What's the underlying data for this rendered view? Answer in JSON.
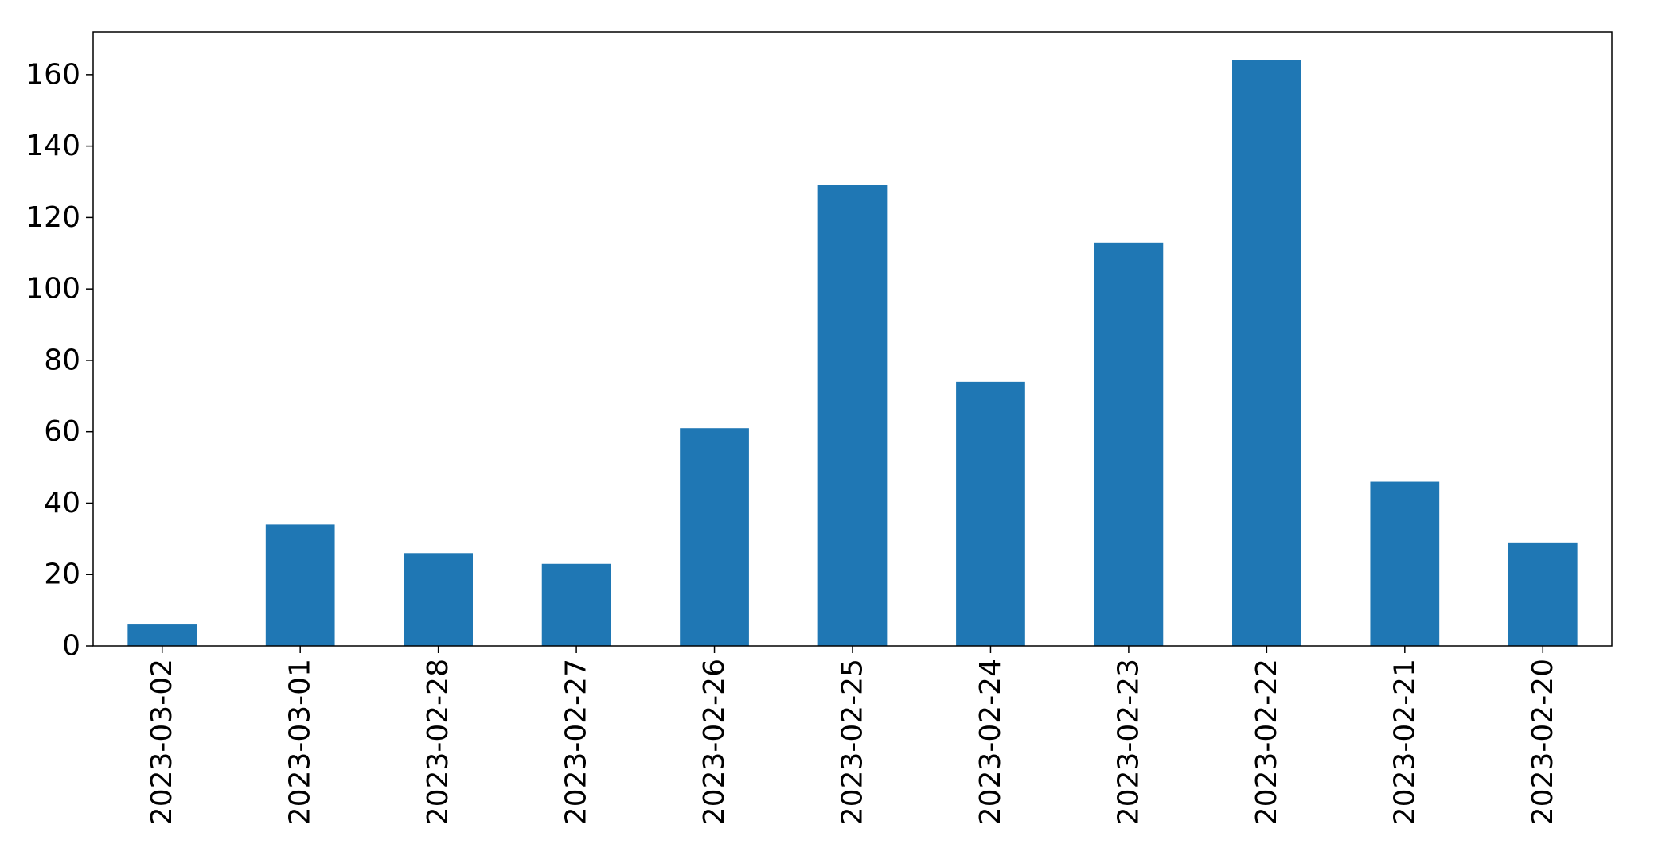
{
  "chart_data": {
    "type": "bar",
    "title": "",
    "xlabel": "",
    "ylabel": "",
    "categories": [
      "2023-03-02",
      "2023-03-01",
      "2023-02-28",
      "2023-02-27",
      "2023-02-26",
      "2023-02-25",
      "2023-02-24",
      "2023-02-23",
      "2023-02-22",
      "2023-02-21",
      "2023-02-20"
    ],
    "values": [
      6,
      34,
      26,
      23,
      61,
      129,
      74,
      113,
      164,
      46,
      29
    ],
    "ylim": [
      0,
      172
    ],
    "yticks": [
      "0",
      "20",
      "40",
      "60",
      "80",
      "100",
      "120",
      "140",
      "160"
    ],
    "bar_color": "#1f77b4",
    "grid": false,
    "legend": "none",
    "x_tick_rotation": "vertical"
  }
}
